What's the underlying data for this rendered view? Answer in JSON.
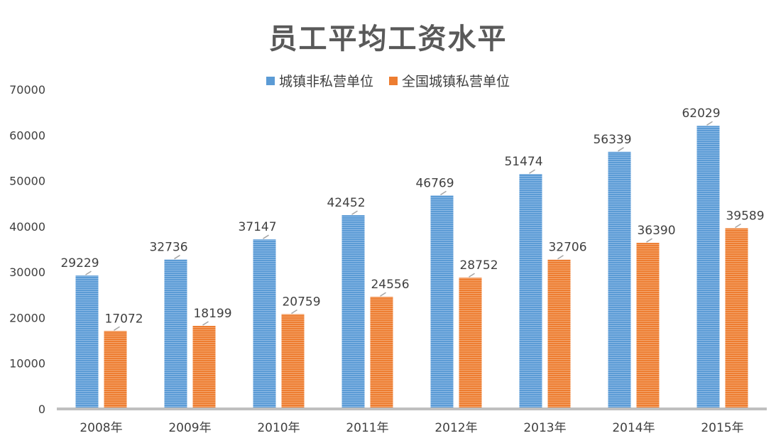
{
  "chart_data": {
    "type": "bar",
    "title": "员工平均工资水平",
    "categories": [
      "2008年",
      "2009年",
      "2010年",
      "2011年",
      "2012年",
      "2013年",
      "2014年",
      "2015年"
    ],
    "series": [
      {
        "name": "城镇非私营单位",
        "color": "#5b9bd5",
        "values": [
          29229,
          32736,
          37147,
          42452,
          46769,
          51474,
          56339,
          62029
        ]
      },
      {
        "name": "全国城镇私营单位",
        "color": "#ed7d31",
        "values": [
          17072,
          18199,
          20759,
          24556,
          28752,
          32706,
          36390,
          39589
        ]
      }
    ],
    "ylim": [
      0,
      70000
    ],
    "yticks": [
      0,
      10000,
      20000,
      30000,
      40000,
      50000,
      60000,
      70000
    ],
    "legend_position": "top-center",
    "grid": false,
    "data_labels": true
  }
}
